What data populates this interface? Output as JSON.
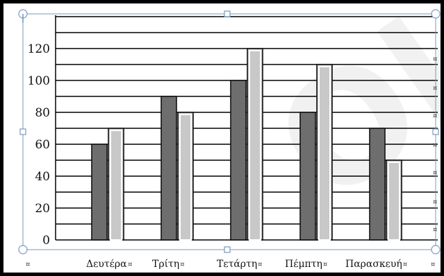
{
  "chart_data": {
    "type": "bar",
    "categories": [
      "Δευτέρα",
      "Τρίτη",
      "Τετάρτη",
      "Πέμπτη",
      "Παρασκευή"
    ],
    "series": [
      {
        "values": [
          60,
          90,
          100,
          80,
          70
        ],
        "color": "#6e6e6e"
      },
      {
        "values": [
          70,
          80,
          120,
          110,
          50
        ],
        "color": "#c8c8c8"
      }
    ],
    "yticks": [
      0,
      20,
      40,
      60,
      80,
      100,
      120
    ],
    "ylim": [
      0,
      140
    ],
    "grid": true,
    "title": "",
    "xlabel": "",
    "ylabel": ""
  },
  "format_marks": {
    "cell_mark": "¤"
  },
  "watermark": {
    "text": "Ok"
  }
}
